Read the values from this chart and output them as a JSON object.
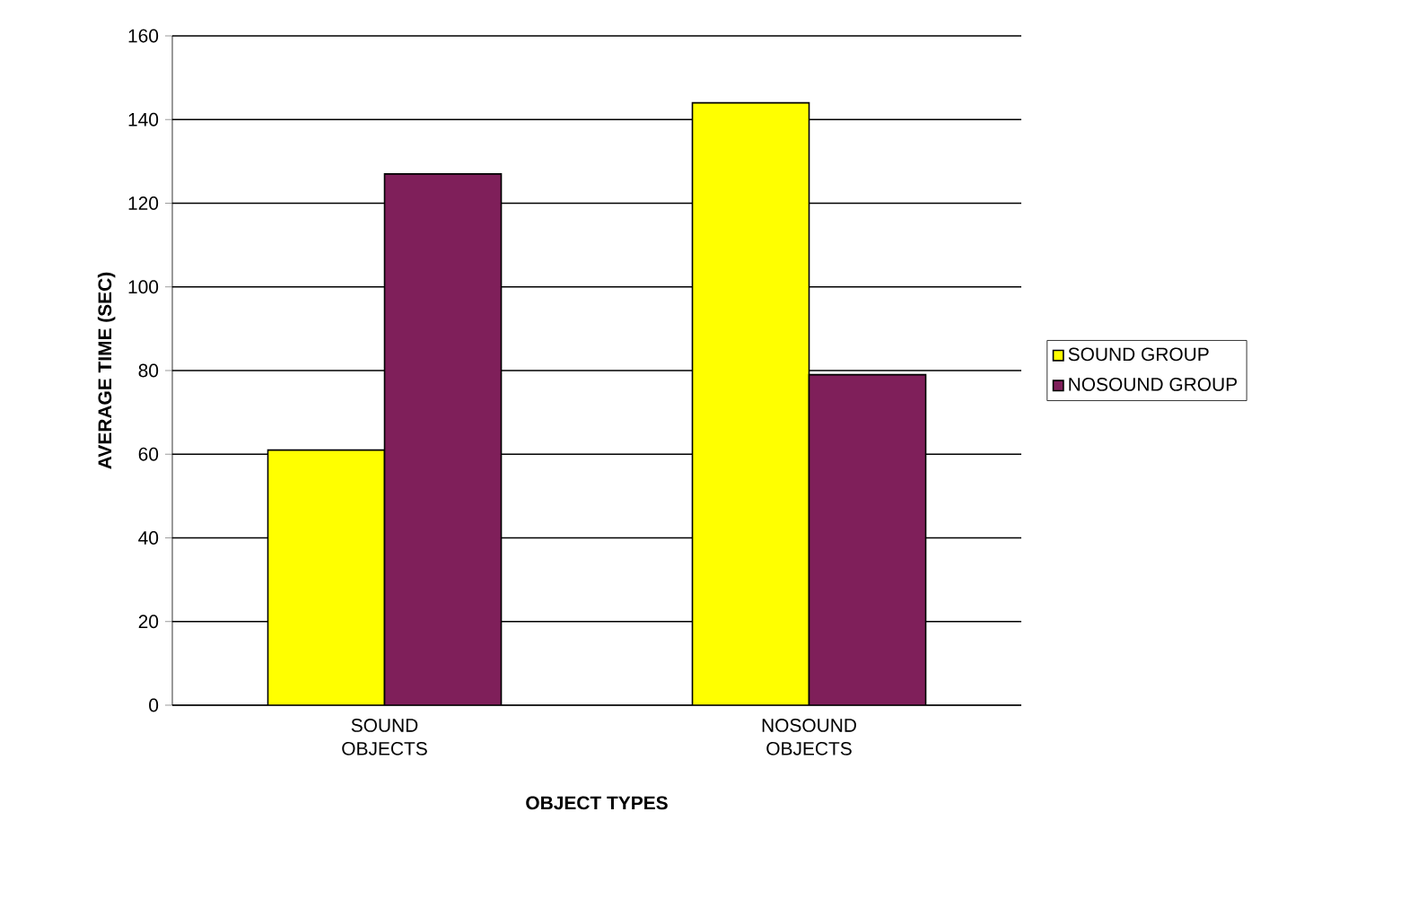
{
  "chart_data": {
    "type": "bar",
    "xlabel": "OBJECT TYPES",
    "ylabel": "AVERAGE TIME (SEC)",
    "categories": [
      "SOUND OBJECTS",
      "NOSOUND OBJECTS"
    ],
    "series": [
      {
        "name": "SOUND GROUP",
        "color": "#ffff00",
        "values": [
          61,
          144
        ]
      },
      {
        "name": "NOSOUND GROUP",
        "color": "#7f1f5a",
        "values": [
          127,
          79
        ]
      }
    ],
    "ylim": [
      0,
      160
    ],
    "yticks": [
      0,
      20,
      40,
      60,
      80,
      100,
      120,
      140,
      160
    ],
    "grid": "y",
    "legend": "right"
  }
}
